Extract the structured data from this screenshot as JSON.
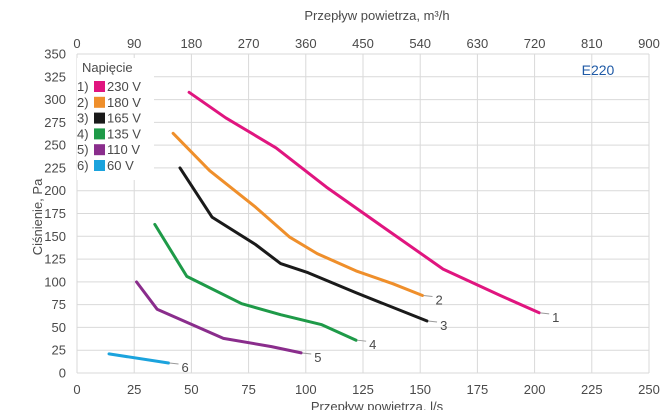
{
  "chart_data": {
    "type": "line",
    "model": "E220",
    "top_axis_label": "Przepływ powietrza, m³/h",
    "xlabel": "Przepływ powietrza, l/s",
    "ylabel": "Ciśnienie, Pa",
    "xlim": [
      0,
      250
    ],
    "ylim": [
      0,
      350
    ],
    "top_xlim": [
      0,
      900
    ],
    "x_ticks": [
      0,
      25,
      50,
      75,
      100,
      125,
      150,
      175,
      200,
      225,
      250
    ],
    "top_x_ticks": [
      0,
      90,
      180,
      270,
      360,
      450,
      540,
      630,
      720,
      810,
      900
    ],
    "y_ticks": [
      0,
      25,
      50,
      75,
      100,
      125,
      150,
      175,
      200,
      225,
      250,
      275,
      300,
      325,
      350
    ],
    "grid": true,
    "legend_title": "Napięcie",
    "legend_position": "top-left",
    "series": [
      {
        "name": "230 V",
        "prefix": "1)",
        "label": "1",
        "color": "#e0157f",
        "x": [
          49,
          65,
          87,
          109,
          135,
          160,
          185,
          202
        ],
        "y": [
          308,
          280,
          247,
          204,
          158,
          114,
          85,
          66
        ]
      },
      {
        "name": "180 V",
        "prefix": "2)",
        "label": "2",
        "color": "#ef8f2b",
        "x": [
          42,
          58,
          78,
          93,
          105,
          122,
          138,
          151
        ],
        "y": [
          263,
          222,
          182,
          149,
          131,
          112,
          98,
          85
        ]
      },
      {
        "name": "165 V",
        "prefix": "3)",
        "label": "3",
        "color": "#1a1a1a",
        "x": [
          45,
          59,
          78,
          89,
          101,
          122,
          153
        ],
        "y": [
          225,
          171,
          141,
          120,
          110,
          88,
          57
        ]
      },
      {
        "name": "135 V",
        "prefix": "4)",
        "label": "4",
        "color": "#1e9a48",
        "x": [
          34,
          48,
          72,
          89,
          107,
          122
        ],
        "y": [
          163,
          106,
          76,
          64,
          53,
          36
        ]
      },
      {
        "name": "110 V",
        "prefix": "5)",
        "label": "5",
        "color": "#8a2d8c",
        "x": [
          26,
          35,
          64,
          85,
          98
        ],
        "y": [
          100,
          70,
          38,
          29,
          22
        ]
      },
      {
        "name": "60 V",
        "prefix": "6)",
        "label": "6",
        "color": "#1ba3dd",
        "x": [
          14,
          40
        ],
        "y": [
          21,
          11
        ]
      }
    ]
  }
}
